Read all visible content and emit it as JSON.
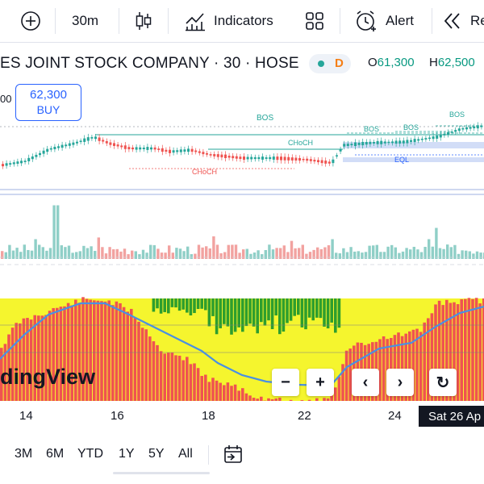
{
  "toolbar": {
    "add_label": "+",
    "interval": "30m",
    "indicators": "Indicators",
    "alert": "Alert",
    "replay": "Re"
  },
  "legend": {
    "symbol": "ES JOINT STOCK COMPANY · 30 · HOSE",
    "market_badge": "D",
    "open_label": "O",
    "open_value": "61,300",
    "high_label": "H",
    "high_value": "62,500",
    "left_clip": "00"
  },
  "order": {
    "price": "62,300",
    "action": "BUY"
  },
  "annotations": {
    "bos_1": "BOS",
    "bos_2": "BOS",
    "bos_3": "BOS",
    "bos_4": "BOS",
    "choch_1": "CHoCH",
    "choch_2": "CHoCH",
    "eql": "EQL"
  },
  "watermark": "dingView",
  "nav": {
    "zoom_out": "−",
    "zoom_in": "+",
    "prev": "‹",
    "next": "›",
    "reset": "↻"
  },
  "time_axis": {
    "labels": [
      "14",
      "16",
      "18",
      "22",
      "24"
    ],
    "highlight": "Sat 26 Ap"
  },
  "ranges": {
    "items": [
      "3M",
      "6M",
      "YTD",
      "1Y",
      "5Y",
      "All"
    ]
  },
  "colors": {
    "up": "#26a69a",
    "down": "#ef5350",
    "osc_red": "#ef5350",
    "osc_yellow": "#f5f52e",
    "osc_green": "#2e9e2e",
    "osc_line": "#4a90e2",
    "accent": "#2962ff"
  }
}
